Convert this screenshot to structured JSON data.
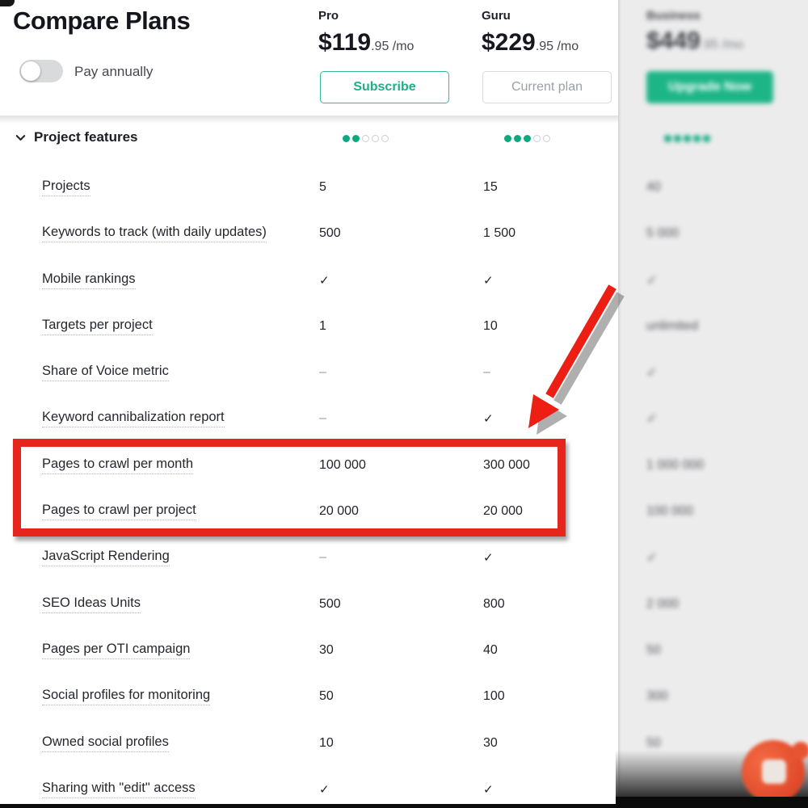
{
  "page": {
    "title": "Compare Plans",
    "toggle_label": "Pay annually",
    "toggle_state": "off"
  },
  "plans": {
    "pro": {
      "name": "Pro",
      "price_main": "$119",
      "price_frac": ".95 /mo",
      "cta": "Subscribe"
    },
    "guru": {
      "name": "Guru",
      "price_main": "$229",
      "price_frac": ".95 /mo",
      "cta": "Current plan"
    },
    "business": {
      "name": "Business",
      "price_main": "$449",
      "price_frac": ".95 /mo",
      "cta": "Upgrade Now",
      "blurred": true
    }
  },
  "section": {
    "label": "Project features",
    "rating_total": 5,
    "ratings": {
      "pro": 2,
      "guru": 3,
      "business": 5
    }
  },
  "rows": [
    {
      "label": "Projects",
      "pro": "5",
      "guru": "15",
      "business": "40"
    },
    {
      "label": "Keywords to track (with daily updates)",
      "pro": "500",
      "guru": "1 500",
      "business": "5 000"
    },
    {
      "label": "Mobile rankings",
      "pro": "✓",
      "guru": "✓",
      "business": "✓"
    },
    {
      "label": "Targets per project",
      "pro": "1",
      "guru": "10",
      "business": "unlimited"
    },
    {
      "label": "Share of Voice metric",
      "pro": "–",
      "guru": "–",
      "business": "✓"
    },
    {
      "label": "Keyword cannibalization report",
      "pro": "–",
      "guru": "✓",
      "business": "✓"
    },
    {
      "label": "Pages to crawl per month",
      "pro": "100 000",
      "guru": "300 000",
      "business": "1 000 000"
    },
    {
      "label": "Pages to crawl per project",
      "pro": "20 000",
      "guru": "20 000",
      "business": "100 000"
    },
    {
      "label": "JavaScript Rendering",
      "pro": "–",
      "guru": "✓",
      "business": "✓"
    },
    {
      "label": "SEO Ideas Units",
      "pro": "500",
      "guru": "800",
      "business": "2 000"
    },
    {
      "label": "Pages per OTI campaign",
      "pro": "30",
      "guru": "40",
      "business": "50"
    },
    {
      "label": "Social profiles for monitoring",
      "pro": "50",
      "guru": "100",
      "business": "300"
    },
    {
      "label": "Owned social profiles",
      "pro": "10",
      "guru": "30",
      "business": "50"
    },
    {
      "label": "Sharing with \"edit\" access",
      "pro": "✓",
      "guru": "✓",
      "business": ""
    }
  ],
  "annotations": {
    "highlighted_rows": [
      "Pages to crawl per month",
      "Pages to crawl per project"
    ]
  },
  "colors": {
    "accent_green": "#1FAE89",
    "dot_green": "#0CA880",
    "button_fill_green": "#1EB586",
    "annotation_red": "#E6261D",
    "text_dark": "#1B1C24",
    "text_gray": "#9AA0A6",
    "business_column_bg": "#ECECEC"
  }
}
